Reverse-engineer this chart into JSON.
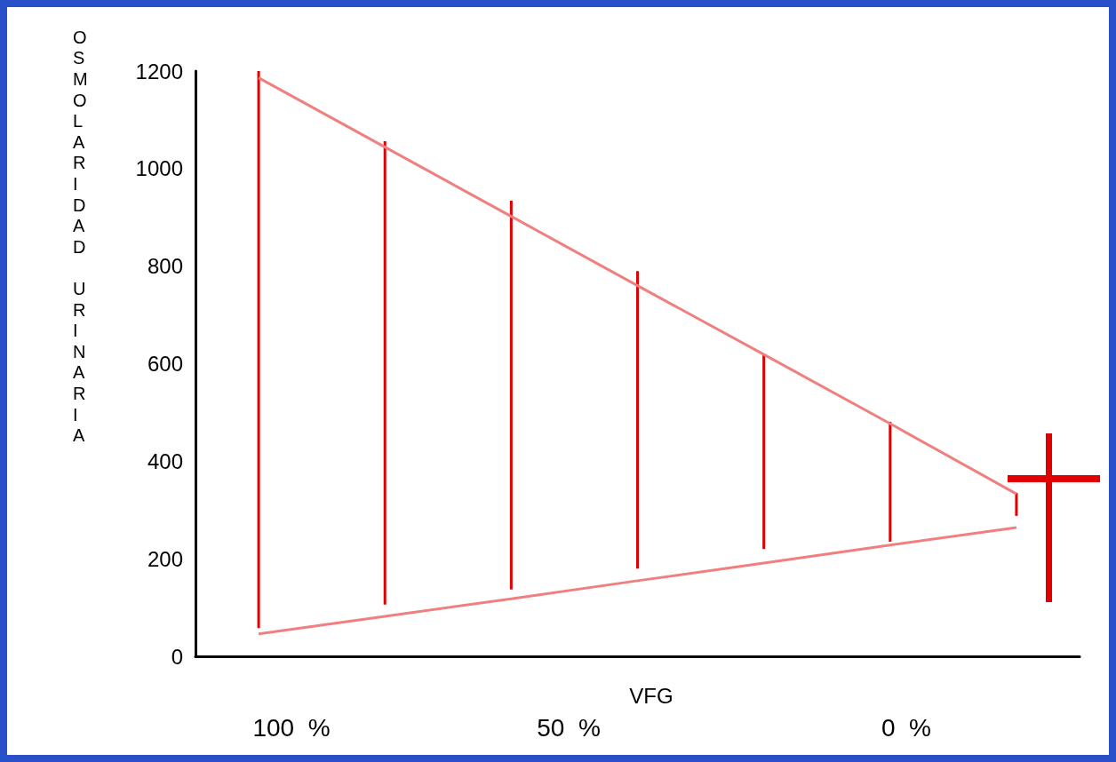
{
  "chart_data": {
    "type": "bar",
    "xlabel": "VFG",
    "ylabel": "OSMOLARIDAD URINARIA",
    "categories": [
      null,
      null,
      null,
      null,
      null,
      null,
      null
    ],
    "ylim": [
      0,
      1200
    ],
    "yticks": [
      0,
      200,
      400,
      600,
      800,
      1000,
      1200
    ],
    "series": [
      {
        "color": "#e00000",
        "base": [
          58,
          106,
          137,
          180,
          220,
          235,
          288
        ],
        "values": [
          1148,
          950,
          797,
          610,
          399,
          246,
          47
        ]
      },
      {
        "type": "line",
        "color": "#f08080",
        "values": [
          1186,
          1044,
          902,
          760,
          619,
          477,
          333
        ]
      },
      {
        "type": "line",
        "color": "#f08080",
        "values": [
          46,
          82,
          118,
          155,
          191,
          228,
          264
        ]
      }
    ],
    "annotations": [
      "100  %",
      "50  %",
      "0  %"
    ]
  }
}
